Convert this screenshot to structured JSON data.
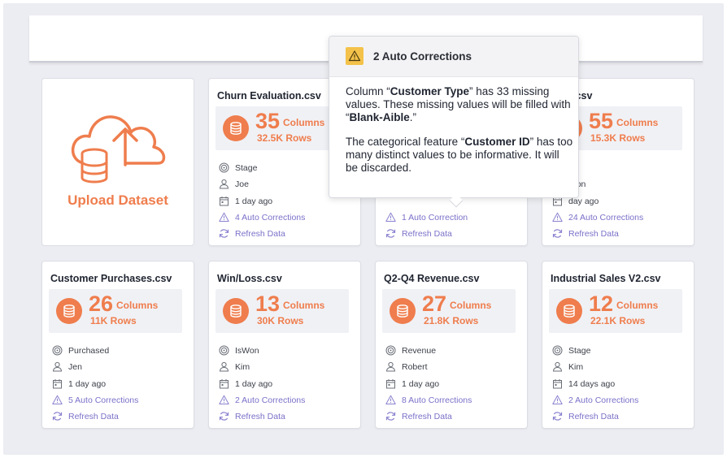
{
  "upload": {
    "label": "Upload Dataset",
    "icon": "cloud-upload-database-icon"
  },
  "accent": "#ef7d4d",
  "link_color": "#7a70c8",
  "tooltip": {
    "title": "2 Auto Corrections",
    "p1_a": "Column “",
    "p1_b": "Customer Type",
    "p1_c": "” has 33 missing values. These missing values will be filled with “",
    "p1_d": "Blank-Aible",
    "p1_e": ".”",
    "p2_a": "The categorical feature “",
    "p2_b": "Customer ID",
    "p2_c": "” has too many distinct values to be informative. It will be discarded."
  },
  "cards": [
    {
      "title": "Churn Evaluation.csv",
      "columns": "35",
      "columns_label": "Columns",
      "rows": "32.5K Rows",
      "target": "Stage",
      "owner": "Joe",
      "time": "1 day ago",
      "corrections": "4 Auto Corrections",
      "refresh": "Refresh Data"
    },
    {
      "title": "",
      "columns": "",
      "columns_label": "",
      "rows": "",
      "target": "",
      "owner": "",
      "time": "",
      "corrections": "1 Auto Correction",
      "refresh": "Refresh Data"
    },
    {
      "title": "Data.csv",
      "columns": "55",
      "columns_label": "Columns",
      "rows": "15.3K Rows",
      "target": "",
      "owner": "Won",
      "time": "day ago",
      "corrections": "24 Auto Corrections",
      "refresh": "Refresh Data"
    },
    {
      "title": "Customer Purchases.csv",
      "columns": "26",
      "columns_label": "Columns",
      "rows": "11K Rows",
      "target": "Purchased",
      "owner": "Jen",
      "time": "1 day ago",
      "corrections": "5 Auto Corrections",
      "refresh": "Refresh Data"
    },
    {
      "title": "Win/Loss.csv",
      "columns": "13",
      "columns_label": "Columns",
      "rows": "30K Rows",
      "target": "IsWon",
      "owner": "Kim",
      "time": "1 day ago",
      "corrections": "2 Auto Corrections",
      "refresh": "Refresh Data"
    },
    {
      "title": "Q2-Q4 Revenue.csv",
      "columns": "27",
      "columns_label": "Columns",
      "rows": "21.8K Rows",
      "target": "Revenue",
      "owner": "Robert",
      "time": "1 day ago",
      "corrections": "8 Auto Corrections",
      "refresh": "Refresh Data"
    },
    {
      "title": "Industrial Sales V2.csv",
      "columns": "12",
      "columns_label": "Columns",
      "rows": "22.1K Rows",
      "target": "Stage",
      "owner": "Kim",
      "time": "14 days ago",
      "corrections": "2 Auto Corrections",
      "refresh": "Refresh Data"
    }
  ]
}
